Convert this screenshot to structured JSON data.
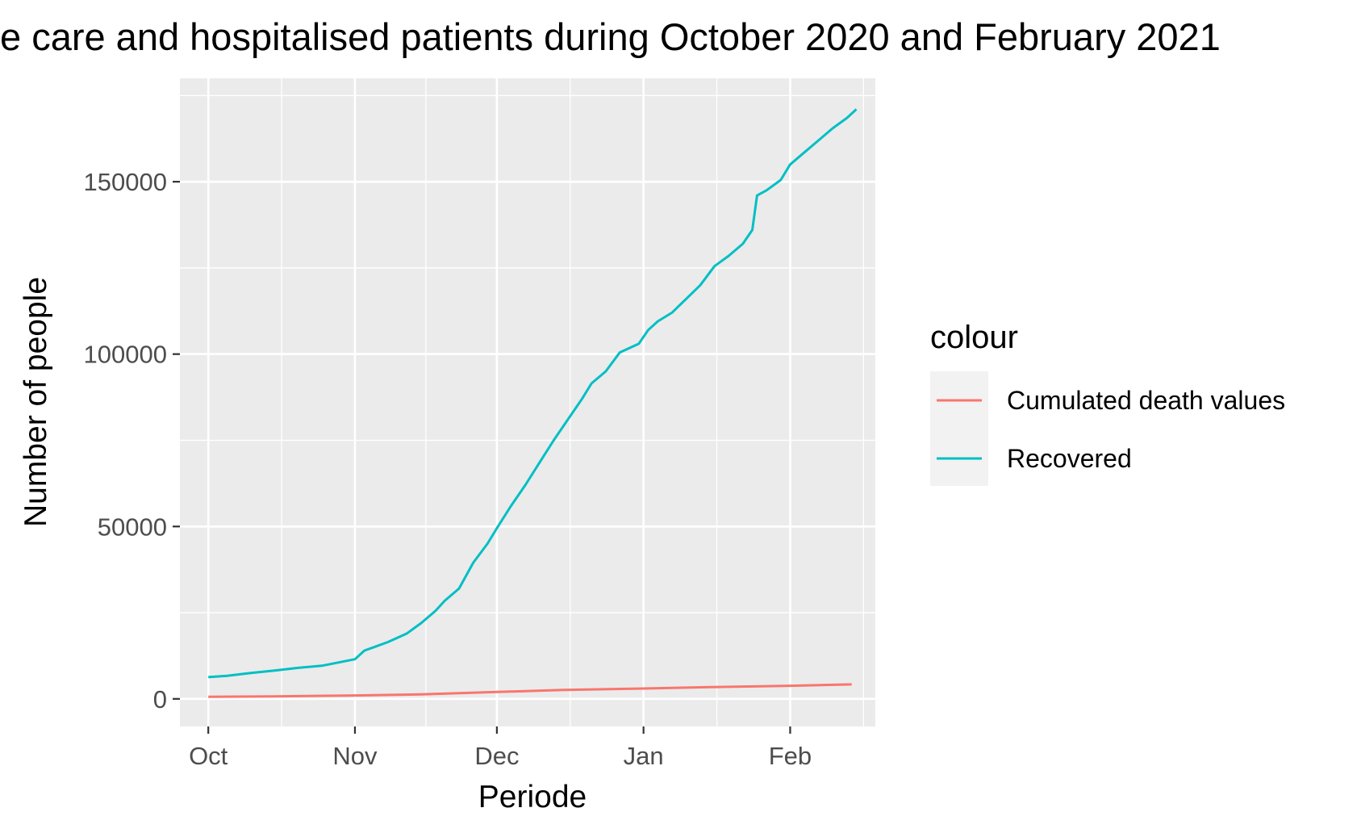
{
  "chart_data": {
    "type": "line",
    "title": "e care and hospitalised patients during October 2020 and February 2021",
    "xlabel": "Periode",
    "ylabel": "Number of people",
    "x_tick_labels": [
      "Oct",
      "Nov",
      "Dec",
      "Jan",
      "Feb"
    ],
    "x_tick_dates": [
      "2020-10-01",
      "2020-11-01",
      "2020-12-01",
      "2021-01-01",
      "2021-02-01"
    ],
    "y_ticks": [
      0,
      50000,
      100000,
      150000
    ],
    "y_tick_labels": [
      "0",
      "50000",
      "100000",
      "150000"
    ],
    "xlim": [
      "2020-09-25",
      "2021-02-19"
    ],
    "ylim": [
      -8000,
      180000
    ],
    "grid": true,
    "legend": {
      "title": "colour",
      "position": "right",
      "entries": [
        "Cumulated death values",
        "Recovered"
      ]
    },
    "series": [
      {
        "name": "Cumulated death values",
        "color": "#F8766D",
        "points": [
          [
            "2020-10-01",
            600
          ],
          [
            "2020-10-15",
            700
          ],
          [
            "2020-11-01",
            1000
          ],
          [
            "2020-11-15",
            1300
          ],
          [
            "2020-12-01",
            2000
          ],
          [
            "2020-12-15",
            2600
          ],
          [
            "2021-01-01",
            3000
          ],
          [
            "2021-01-15",
            3400
          ],
          [
            "2021-02-01",
            3800
          ],
          [
            "2021-02-14",
            4200
          ]
        ]
      },
      {
        "name": "Recovered",
        "color": "#00BFC4",
        "points": [
          [
            "2020-10-01",
            6300
          ],
          [
            "2020-10-05",
            6700
          ],
          [
            "2020-10-10",
            7500
          ],
          [
            "2020-10-15",
            8200
          ],
          [
            "2020-10-20",
            9000
          ],
          [
            "2020-10-25",
            9600
          ],
          [
            "2020-11-01",
            11500
          ],
          [
            "2020-11-03",
            14000
          ],
          [
            "2020-11-05",
            15000
          ],
          [
            "2020-11-08",
            16500
          ],
          [
            "2020-11-12",
            19000
          ],
          [
            "2020-11-15",
            22000
          ],
          [
            "2020-11-18",
            25500
          ],
          [
            "2020-11-20",
            28500
          ],
          [
            "2020-11-23",
            32000
          ],
          [
            "2020-11-26",
            39500
          ],
          [
            "2020-11-29",
            45000
          ],
          [
            "2020-12-01",
            49500
          ],
          [
            "2020-12-04",
            56000
          ],
          [
            "2020-12-07",
            62000
          ],
          [
            "2020-12-10",
            68500
          ],
          [
            "2020-12-13",
            75000
          ],
          [
            "2020-12-16",
            81000
          ],
          [
            "2020-12-19",
            87000
          ],
          [
            "2020-12-21",
            91500
          ],
          [
            "2020-12-24",
            95000
          ],
          [
            "2020-12-27",
            100500
          ],
          [
            "2020-12-31",
            103000
          ],
          [
            "2021-01-02",
            107000
          ],
          [
            "2021-01-04",
            109500
          ],
          [
            "2021-01-07",
            112000
          ],
          [
            "2021-01-10",
            116000
          ],
          [
            "2021-01-13",
            120000
          ],
          [
            "2021-01-16",
            125500
          ],
          [
            "2021-01-19",
            128500
          ],
          [
            "2021-01-22",
            132000
          ],
          [
            "2021-01-24",
            136000
          ],
          [
            "2021-01-25",
            146000
          ],
          [
            "2021-01-27",
            147500
          ],
          [
            "2021-01-30",
            150500
          ],
          [
            "2021-02-01",
            155000
          ],
          [
            "2021-02-04",
            158500
          ],
          [
            "2021-02-07",
            162000
          ],
          [
            "2021-02-10",
            165500
          ],
          [
            "2021-02-13",
            168500
          ],
          [
            "2021-02-15",
            171000
          ]
        ]
      }
    ]
  }
}
